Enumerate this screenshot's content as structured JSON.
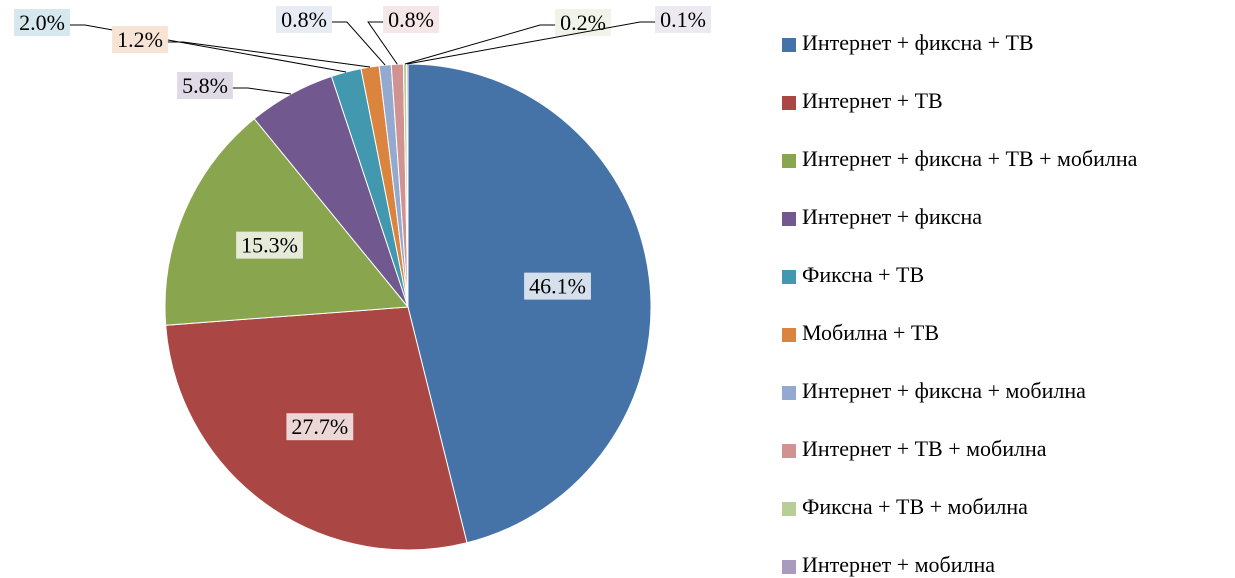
{
  "chart_data": {
    "type": "pie",
    "categories": [
      "Интернет + фиксна + ТВ",
      "Интернет + ТВ",
      "Интернет + фиксна + ТВ + мобилна",
      "Интернет + фиксна",
      "Фиксна + ТВ",
      "Мобилна + ТВ",
      "Интернет + фиксна + мобилна",
      "Интернет + ТВ + мобилна",
      "Фиксна + ТВ + мобилна",
      "Интернет + мобилна"
    ],
    "values": [
      46.1,
      27.7,
      15.3,
      5.8,
      2.0,
      1.2,
      0.8,
      0.8,
      0.2,
      0.1
    ],
    "value_labels": [
      "46.1%",
      "27.7%",
      "15.3%",
      "5.8%",
      "2.0%",
      "1.2%",
      "0.8%",
      "0.8%",
      "0.2%",
      "0.1%"
    ],
    "colors": [
      "#4572a7",
      "#aa4643",
      "#89a54e",
      "#71588f",
      "#4198af",
      "#db843d",
      "#93a9cf",
      "#d19392",
      "#b9cd96",
      "#a99bbd"
    ],
    "legend": "right"
  }
}
